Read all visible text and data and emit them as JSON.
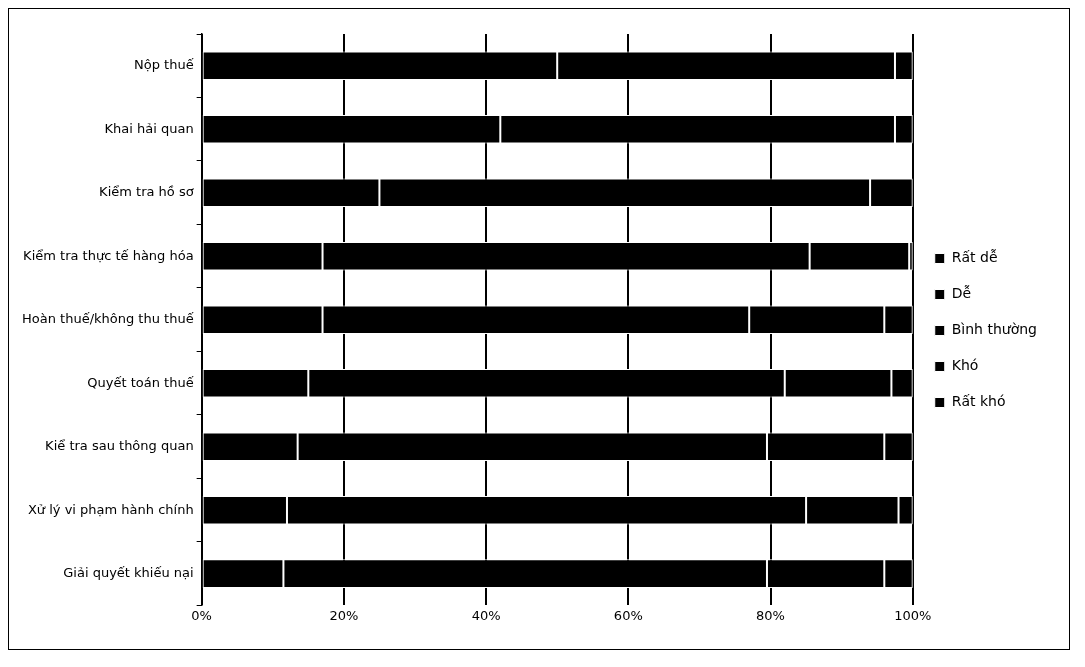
{
  "chart_data": {
    "type": "bar",
    "orientation": "horizontal",
    "stacked": true,
    "categories": [
      "Nộp thuế",
      "Khai hải quan",
      "Kiểm tra hồ sơ",
      "Kiểm tra thực tế hàng hóa",
      "Hoàn thuế/không thu thuế",
      "Quyết toán thuế",
      "Kiể tra sau thông quan",
      "Xử lý vi phạm hành chính",
      "Giải quyết khiếu nại"
    ],
    "series": [
      {
        "name": "Rất dễ",
        "color": "#000000",
        "values": [
          50,
          42,
          25,
          17,
          17,
          15,
          13.5,
          12,
          11.5
        ]
      },
      {
        "name": "Dễ",
        "color": "#000000",
        "values": [
          47.5,
          55.5,
          69,
          68.5,
          60,
          67,
          66,
          73,
          68
        ]
      },
      {
        "name": "Bình thường",
        "color": "#000000",
        "values": [
          2.5,
          2.5,
          6,
          14,
          19,
          15,
          16.5,
          13,
          16.5
        ]
      },
      {
        "name": "Khó",
        "color": "#000000",
        "values": [
          0,
          0,
          0,
          0.5,
          4,
          3,
          4,
          2,
          4
        ]
      },
      {
        "name": "Rất khó",
        "color": "#000000",
        "values": [
          0,
          0,
          0,
          0,
          0,
          0,
          0,
          0,
          0
        ]
      }
    ],
    "xlim": [
      0,
      100
    ],
    "xticks": [
      {
        "value": 0,
        "label": "0%"
      },
      {
        "value": 20,
        "label": "20%"
      },
      {
        "value": 40,
        "label": "40%"
      },
      {
        "value": 60,
        "label": "60%"
      },
      {
        "value": 80,
        "label": "80%"
      },
      {
        "value": 100,
        "label": "100%"
      }
    ],
    "grid": "x",
    "legend": "right"
  }
}
